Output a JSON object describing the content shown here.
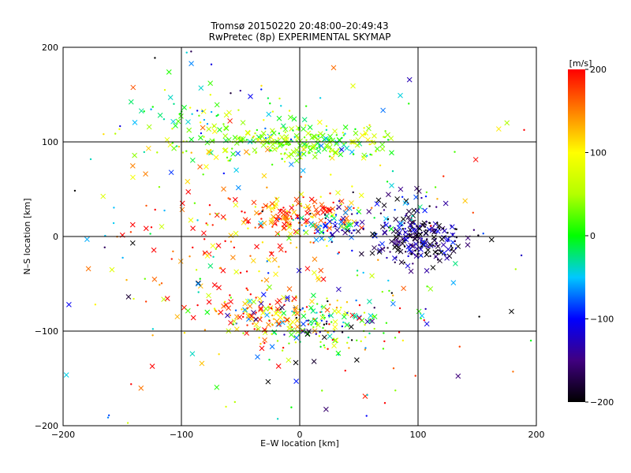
{
  "chart_data": {
    "type": "scatter",
    "title": "Tromsø 20150220 20:48:00–20:49:43",
    "subtitle": "RwPretec (8p) EXPERIMENTAL SKYMAP",
    "xlabel": "E–W location [km]",
    "ylabel": "N–S location [km]",
    "xlim": [
      -200,
      200
    ],
    "ylim": [
      -200,
      200
    ],
    "xticks": [
      -200,
      -100,
      0,
      100,
      200
    ],
    "yticks": [
      -200,
      -100,
      0,
      100,
      200
    ],
    "grid": true,
    "colorbar": {
      "label": "[m/s]",
      "min": -200,
      "max": 200,
      "ticks": [
        200,
        100,
        0,
        -100,
        -200
      ]
    },
    "markers": [
      "x",
      "dot"
    ],
    "clusters": [
      {
        "x": -15,
        "y": 100,
        "sx": 45,
        "sy": 10,
        "v": 40,
        "vs": 40,
        "n": 170
      },
      {
        "x": 20,
        "y": 100,
        "sx": 28,
        "sy": 8,
        "v": 20,
        "vs": 40,
        "n": 90
      },
      {
        "x": -5,
        "y": 22,
        "sx": 28,
        "sy": 10,
        "v": 170,
        "vs": 50,
        "n": 140
      },
      {
        "x": 30,
        "y": 12,
        "sx": 18,
        "sy": 9,
        "v": -80,
        "vs": 60,
        "n": 70
      },
      {
        "x": 102,
        "y": -5,
        "sx": 18,
        "sy": 13,
        "v": -175,
        "vs": 40,
        "n": 220
      },
      {
        "x": 85,
        "y": 20,
        "sx": 15,
        "sy": 15,
        "v": -120,
        "vs": 60,
        "n": 50
      },
      {
        "x": 10,
        "y": -90,
        "sx": 40,
        "sy": 15,
        "v": 20,
        "vs": 120,
        "n": 220
      },
      {
        "x": -30,
        "y": -80,
        "sx": 20,
        "sy": 12,
        "v": 160,
        "vs": 50,
        "n": 60
      },
      {
        "x": -80,
        "y": 125,
        "sx": 40,
        "sy": 20,
        "v": 0,
        "vs": 60,
        "n": 60
      },
      {
        "x": -60,
        "y": -20,
        "sx": 50,
        "sy": 40,
        "v": 150,
        "vs": 70,
        "n": 120
      },
      {
        "x": 0,
        "y": 0,
        "sx": 120,
        "sy": 120,
        "v": 0,
        "vs": 140,
        "n": 230
      }
    ]
  }
}
